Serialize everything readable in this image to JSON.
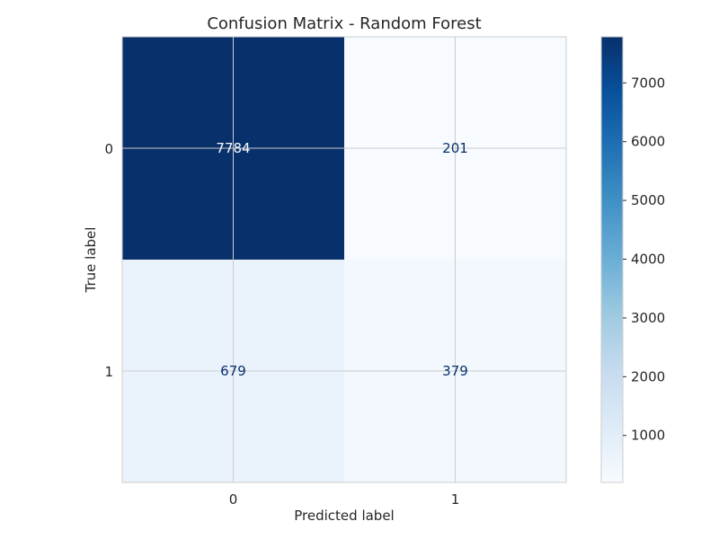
{
  "chart_data": {
    "type": "heatmap",
    "title": "Confusion Matrix - Random Forest",
    "xlabel": "Predicted label",
    "ylabel": "True label",
    "x_categories": [
      "0",
      "1"
    ],
    "y_categories": [
      "0",
      "1"
    ],
    "values": [
      [
        7784,
        201
      ],
      [
        679,
        379
      ]
    ],
    "colormap": "Blues",
    "colorbar": {
      "ticks": [
        1000,
        2000,
        3000,
        4000,
        5000,
        6000,
        7000
      ],
      "tick_labels": [
        "1000",
        "2000",
        "3000",
        "4000",
        "5000",
        "6000",
        "7000"
      ]
    },
    "grid": true
  }
}
